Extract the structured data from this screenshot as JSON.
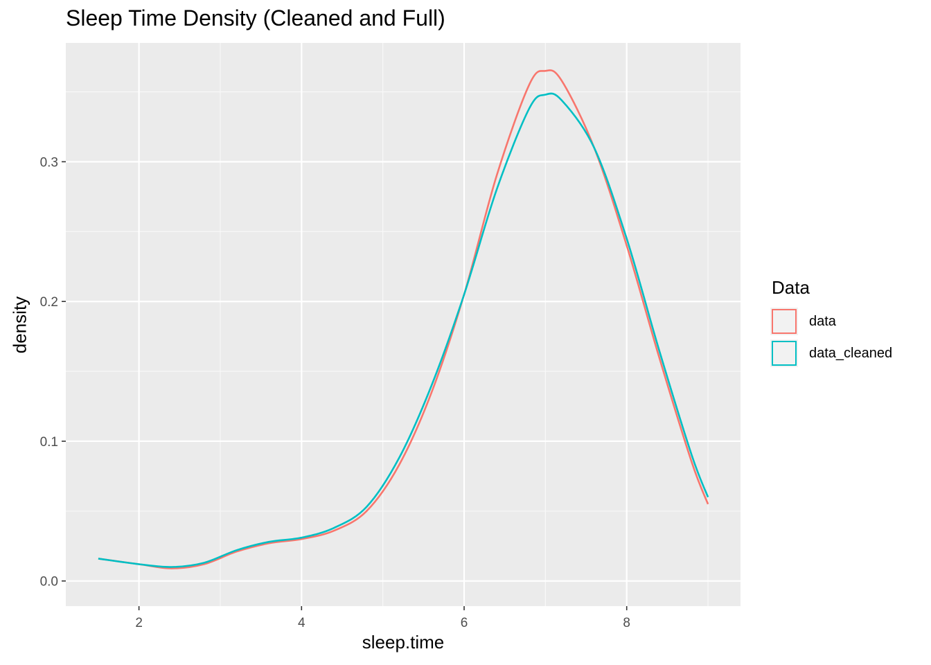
{
  "chart_data": {
    "type": "area",
    "title": "Sleep Time Density (Cleaned and Full)",
    "xlabel": "sleep.time",
    "ylabel": "density",
    "xlim": [
      1.1,
      9.4
    ],
    "ylim": [
      -0.018,
      0.385
    ],
    "x_ticks": [
      2,
      4,
      6,
      8
    ],
    "x_tick_labels": [
      "2",
      "4",
      "6",
      "8"
    ],
    "y_ticks": [
      0.0,
      0.1,
      0.2,
      0.3
    ],
    "y_tick_labels": [
      "0.0",
      "0.1",
      "0.2",
      "0.3"
    ],
    "grid": true,
    "legend": {
      "title": "Data",
      "placement": "right"
    },
    "x": [
      1.5,
      2.0,
      2.4,
      2.8,
      3.2,
      3.6,
      4.0,
      4.4,
      4.8,
      5.2,
      5.6,
      6.0,
      6.4,
      6.8,
      7.0,
      7.2,
      7.6,
      8.0,
      8.4,
      8.8,
      9.0
    ],
    "series": [
      {
        "name": "data",
        "color": "#F8766D",
        "values": [
          0.016,
          0.012,
          0.009,
          0.012,
          0.021,
          0.027,
          0.03,
          0.036,
          0.05,
          0.083,
          0.135,
          0.205,
          0.29,
          0.355,
          0.365,
          0.358,
          0.31,
          0.24,
          0.16,
          0.085,
          0.055
        ]
      },
      {
        "name": "data_cleaned",
        "color": "#00BFC4",
        "values": [
          0.016,
          0.012,
          0.01,
          0.013,
          0.022,
          0.028,
          0.031,
          0.038,
          0.053,
          0.088,
          0.14,
          0.205,
          0.28,
          0.338,
          0.348,
          0.344,
          0.31,
          0.245,
          0.165,
          0.09,
          0.06
        ]
      }
    ]
  }
}
